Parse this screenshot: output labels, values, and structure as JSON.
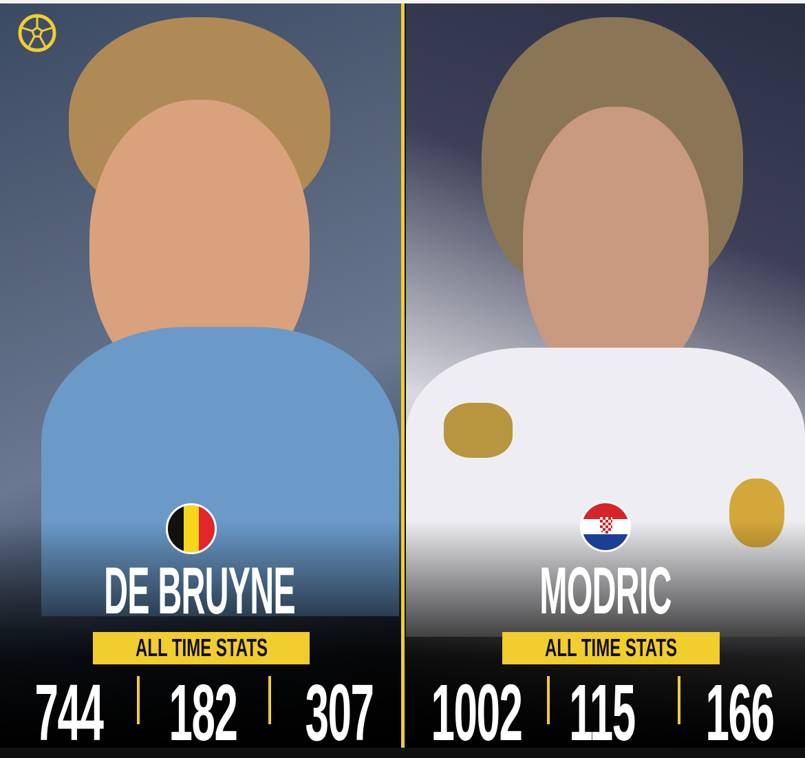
{
  "logo": {
    "icon": "soccer-ball-icon",
    "color": "#f2cd2e"
  },
  "players": [
    {
      "name": "DE BRUYNE",
      "flag": "belgium-flag-icon",
      "badge": "ALL TIME STATS",
      "stats": [
        "744",
        "182",
        "307"
      ]
    },
    {
      "name": "MODRIC",
      "flag": "croatia-flag-icon",
      "badge": "ALL TIME STATS",
      "stats": [
        "1002",
        "115",
        "166"
      ]
    }
  ],
  "colors": {
    "accent": "#f2cd2e",
    "text": "#ffffff"
  }
}
